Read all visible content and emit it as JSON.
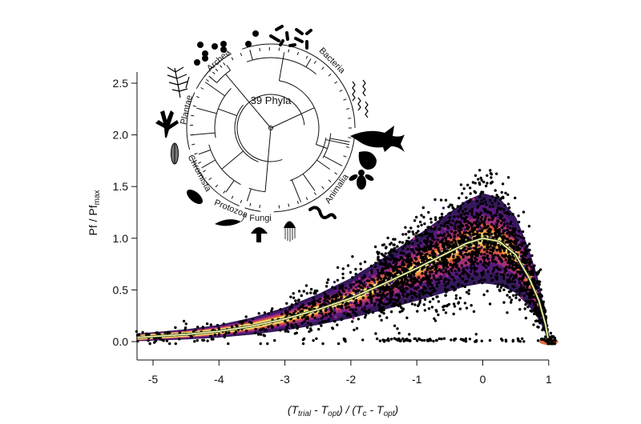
{
  "chart_data": {
    "type": "scatter",
    "title": "",
    "xlabel": {
      "pre": "(T",
      "sub1": "trial",
      "mid1": " - T",
      "sub2": "opt",
      "mid2": ") / (T",
      "sub3": "c",
      "mid3": " - T",
      "sub4": "opt",
      "post": ")"
    },
    "ylabel": {
      "main": "Pf / Pf",
      "sub": "max"
    },
    "xlim": [
      -5.25,
      1.2
    ],
    "ylim": [
      0,
      2.6
    ],
    "xticks": [
      "-5",
      "-4",
      "-3",
      "-2",
      "-1",
      "0",
      "1"
    ],
    "xtick_values": [
      -5,
      -4,
      -3,
      -2,
      -1,
      0,
      1
    ],
    "yticks": [
      "0.0",
      "0.5",
      "1.0",
      "1.5",
      "2.0",
      "2.5"
    ],
    "ytick_values": [
      0,
      0.5,
      1.0,
      1.5,
      2.0,
      2.5
    ],
    "grid": false,
    "fit_curve": {
      "x": [
        -5.25,
        -5,
        -4.5,
        -4,
        -3.5,
        -3,
        -2.5,
        -2,
        -1.5,
        -1,
        -0.5,
        -0.25,
        0,
        0.25,
        0.5,
        0.7,
        0.85,
        0.95,
        1.0
      ],
      "y": [
        0.04,
        0.05,
        0.07,
        0.1,
        0.15,
        0.22,
        0.31,
        0.42,
        0.56,
        0.71,
        0.87,
        0.95,
        1.0,
        0.97,
        0.84,
        0.62,
        0.4,
        0.17,
        0.0
      ]
    },
    "density_colors": [
      "#fbe67f",
      "#f4a03d",
      "#de5a45",
      "#a8307a",
      "#5b1a80",
      "#2a0d52"
    ],
    "point_color": "#000000",
    "fit_line_color": "#fff6b0",
    "fit_outline_color": "#2f4a1e"
  },
  "inset": {
    "center_label": "39 Phyla",
    "groups": [
      "Archea",
      "Bacteria",
      "Plantae",
      "Chromista",
      "Protozoa",
      "Fungi",
      "Animalia"
    ],
    "icons": [
      "bacteria-dots-icon",
      "bacteria-rods-icon",
      "spirochete-icon",
      "shark-icon",
      "snail-icon",
      "fly-icon",
      "worm-icon",
      "jellyfish-icon",
      "mushroom-icon",
      "protozoa-icon",
      "ciliate-icon",
      "diatom-icon",
      "seaweed-icon",
      "fern-icon"
    ]
  }
}
